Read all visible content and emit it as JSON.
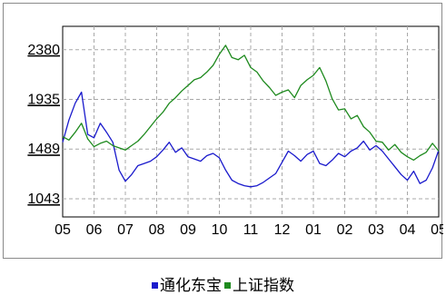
{
  "chart_data": {
    "type": "line",
    "title": "",
    "xlabel": "",
    "ylabel": "",
    "x_labels": [
      "05",
      "06",
      "07",
      "08",
      "09",
      "10",
      "11",
      "12",
      "01",
      "02",
      "03",
      "04",
      "05"
    ],
    "yticks": [
      1043,
      1489,
      1935,
      2380
    ],
    "ylim": [
      880,
      2590
    ],
    "grid": true,
    "legend_position": "bottom-center",
    "series": [
      {
        "name": "通化东宝",
        "color": "#1a1acc",
        "x": [
          0,
          0.2,
          0.4,
          0.6,
          0.8,
          1.0,
          1.2,
          1.4,
          1.6,
          1.8,
          2.0,
          2.2,
          2.4,
          2.6,
          2.8,
          3.0,
          3.2,
          3.4,
          3.6,
          3.8,
          4.0,
          4.2,
          4.4,
          4.6,
          4.8,
          5.0,
          5.2,
          5.4,
          5.6,
          5.8,
          6.0,
          6.2,
          6.4,
          6.6,
          6.8,
          7.0,
          7.2,
          7.4,
          7.6,
          7.8,
          8.0,
          8.2,
          8.4,
          8.6,
          8.8,
          9.0,
          9.2,
          9.4,
          9.6,
          9.8,
          10.0,
          10.2,
          10.4,
          10.6,
          10.8,
          11.0,
          11.2,
          11.4,
          11.6,
          11.8,
          12.0
        ],
        "values": [
          1550,
          1750,
          1900,
          2000,
          1620,
          1590,
          1720,
          1640,
          1550,
          1300,
          1200,
          1260,
          1340,
          1360,
          1380,
          1420,
          1480,
          1550,
          1460,
          1500,
          1420,
          1400,
          1380,
          1430,
          1450,
          1410,
          1300,
          1210,
          1180,
          1160,
          1150,
          1160,
          1190,
          1230,
          1270,
          1370,
          1470,
          1430,
          1380,
          1440,
          1470,
          1360,
          1340,
          1390,
          1450,
          1420,
          1470,
          1500,
          1560,
          1480,
          1520,
          1470,
          1400,
          1330,
          1260,
          1210,
          1290,
          1180,
          1210,
          1320,
          1480
        ]
      },
      {
        "name": "上证指数",
        "color": "#1e8a1e",
        "x": [
          0,
          0.2,
          0.4,
          0.6,
          0.8,
          1.0,
          1.2,
          1.4,
          1.6,
          1.8,
          2.0,
          2.2,
          2.4,
          2.6,
          2.8,
          3.0,
          3.2,
          3.4,
          3.6,
          3.8,
          4.0,
          4.2,
          4.4,
          4.6,
          4.8,
          5.0,
          5.2,
          5.4,
          5.6,
          5.8,
          6.0,
          6.2,
          6.4,
          6.6,
          6.8,
          7.0,
          7.2,
          7.4,
          7.6,
          7.8,
          8.0,
          8.2,
          8.4,
          8.6,
          8.8,
          9.0,
          9.2,
          9.4,
          9.6,
          9.8,
          10.0,
          10.2,
          10.4,
          10.6,
          10.8,
          11.0,
          11.2,
          11.4,
          11.6,
          11.8,
          12.0
        ],
        "values": [
          1600,
          1570,
          1640,
          1720,
          1580,
          1510,
          1540,
          1560,
          1520,
          1500,
          1480,
          1520,
          1560,
          1620,
          1690,
          1760,
          1820,
          1900,
          1950,
          2010,
          2060,
          2110,
          2130,
          2180,
          2240,
          2340,
          2420,
          2310,
          2290,
          2330,
          2220,
          2180,
          2100,
          2040,
          1970,
          2000,
          2020,
          1950,
          2060,
          2110,
          2150,
          2220,
          2100,
          1940,
          1840,
          1850,
          1760,
          1790,
          1690,
          1640,
          1560,
          1550,
          1480,
          1530,
          1460,
          1420,
          1390,
          1430,
          1460,
          1540,
          1470
        ]
      }
    ]
  },
  "legend": {
    "label_1": "通化东宝",
    "label_2": "上证指数"
  }
}
